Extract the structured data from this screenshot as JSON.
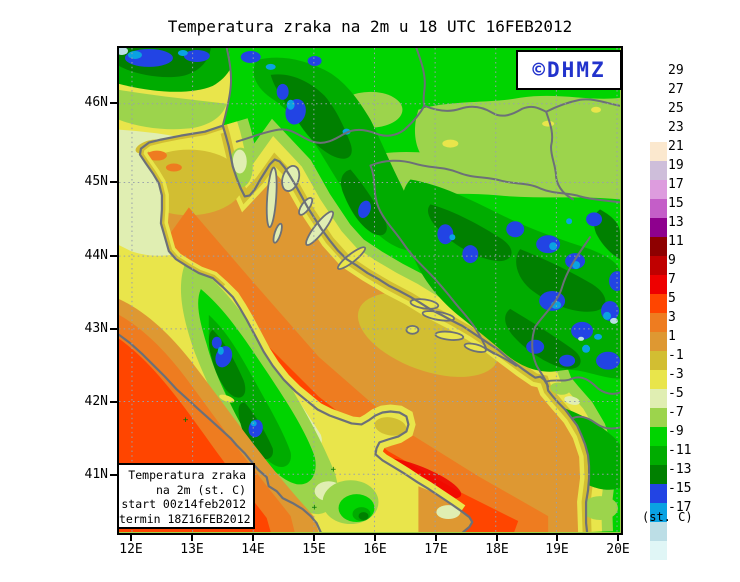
{
  "title": "Temperatura zraka na 2m u 18 UTC 16FEB2012",
  "logo": {
    "text": "©DHMZ",
    "color": "#2233CC"
  },
  "axes": {
    "lat_labels": [
      "46N",
      "45N",
      "44N",
      "43N",
      "42N",
      "41N"
    ],
    "lon_labels": [
      "12E",
      "13E",
      "14E",
      "15E",
      "16E",
      "17E",
      "18E",
      "19E",
      "20E"
    ]
  },
  "info_box": {
    "lines": [
      "Temperatura zraka",
      "na 2m (st. C)",
      "start 00z14feb2012",
      "termin 18Z16FEB2012"
    ]
  },
  "colorbar": {
    "unit_label": "(st. C)",
    "tick_labels": [
      "29",
      "27",
      "25",
      "23",
      "21",
      "19",
      "17",
      "15",
      "13",
      "11",
      "9",
      "7",
      "5",
      "3",
      "1",
      "-1",
      "-3",
      "-5",
      "-7",
      "-9",
      "-11",
      "-13",
      "-15",
      "-17"
    ],
    "swatch_colors_top_to_bottom": [
      "#FBE8CE",
      "#CEBEDA",
      "#DD9CDE",
      "#C45EC8",
      "#8E008E",
      "#8E0000",
      "#C00000",
      "#EE0000",
      "#FF4500",
      "#EE7C20",
      "#DE9832",
      "#D2BE32",
      "#E9E54B",
      "#E0EEB2",
      "#9CD44C",
      "#00D400",
      "#00AC00",
      "#008000",
      "#2244E4",
      "#0AA2E2",
      "#BCDEE6",
      "#E0F6F6",
      "#FFFFFF"
    ]
  }
}
